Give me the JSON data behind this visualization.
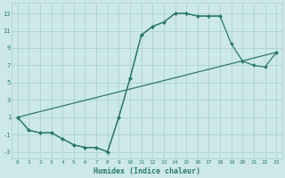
{
  "xlabel": "Humidex (Indice chaleur)",
  "bg_color": "#cce8e8",
  "grid_color": "#aacccc",
  "line_color": "#2d7a70",
  "xlim": [
    -0.5,
    23.5
  ],
  "ylim": [
    -3.8,
    14.2
  ],
  "xticks": [
    0,
    1,
    2,
    3,
    4,
    5,
    6,
    7,
    8,
    9,
    10,
    11,
    12,
    13,
    14,
    15,
    16,
    17,
    18,
    19,
    20,
    21,
    22,
    23
  ],
  "yticks": [
    -3,
    -1,
    1,
    3,
    5,
    7,
    9,
    11,
    13
  ],
  "series": [
    {
      "x": [
        0,
        1,
        2,
        3,
        4,
        5,
        6,
        7,
        8,
        9,
        10,
        11,
        12,
        13,
        14,
        15,
        16,
        17,
        18
      ],
      "y": [
        1,
        -0.5,
        -0.8,
        -0.8,
        -1.5,
        -2.2,
        -2.5,
        -2.5,
        -3,
        1,
        5.5,
        10.5,
        11.5,
        12,
        13,
        13,
        12.7,
        12.7,
        12.7
      ]
    },
    {
      "x": [
        0,
        1,
        2,
        3,
        4,
        5,
        6,
        7,
        8,
        9,
        10,
        11,
        12,
        13,
        14,
        15,
        16,
        17,
        18,
        19,
        20,
        21,
        22,
        23
      ],
      "y": [
        1,
        -0.5,
        -0.8,
        -0.8,
        -1.5,
        -2.2,
        -2.5,
        -2.5,
        -3,
        1,
        5.5,
        10.5,
        11.5,
        12,
        13,
        13,
        12.7,
        12.7,
        12.7,
        9.5,
        7.5,
        7,
        6.8,
        8.5
      ]
    },
    {
      "x": [
        0,
        23
      ],
      "y": [
        1,
        8.5
      ]
    }
  ]
}
